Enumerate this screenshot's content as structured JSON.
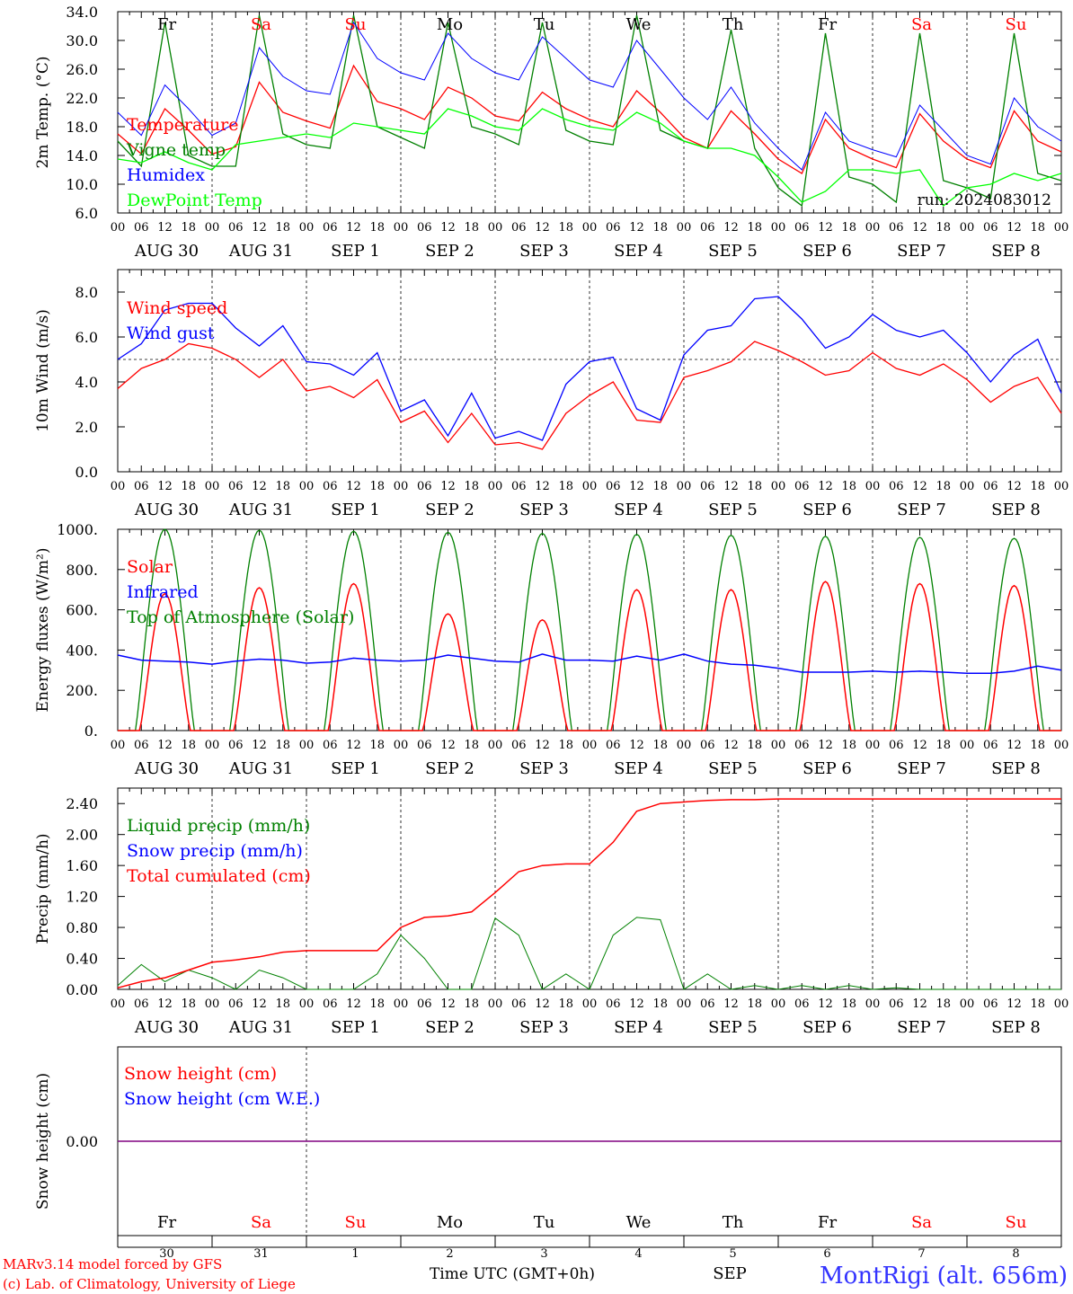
{
  "chart_data": [
    {
      "type": "line",
      "ylabel": "2m Temp. (°C)",
      "ylim": [
        6,
        34
      ],
      "yticks": [
        "6.0",
        "10.0",
        "14.0",
        "18.0",
        "22.0",
        "26.0",
        "30.0",
        "34.0"
      ],
      "yvals": [
        6,
        10,
        14,
        18,
        22,
        26,
        30,
        34
      ],
      "run_label": "run: 2024083012",
      "series": [
        {
          "name": "Temperature",
          "color": "#ff0000",
          "values": [
            17.0,
            14.2,
            20.5,
            17.5,
            14.2,
            15.2,
            24.2,
            20.0,
            18.8,
            17.8,
            26.5,
            21.5,
            20.5,
            19.0,
            23.5,
            22.0,
            19.5,
            18.8,
            22.8,
            20.5,
            19.0,
            18.0,
            23.0,
            20.0,
            16.5,
            15.0,
            20.2,
            17.0,
            13.5,
            11.5,
            19.0,
            15.0,
            13.5,
            12.3,
            19.8,
            16.0,
            13.5,
            12.3,
            20.2,
            16.0,
            14.5
          ]
        },
        {
          "name": "Vigne temp",
          "color": "#008000",
          "values": [
            16.0,
            12.5,
            32.5,
            14.0,
            12.5,
            12.5,
            33.5,
            17.0,
            15.5,
            15.0,
            33.5,
            18.0,
            16.5,
            15.0,
            32.5,
            18.0,
            17.0,
            15.5,
            32.5,
            17.5,
            16.0,
            15.5,
            33.5,
            17.5,
            16.0,
            15.0,
            31.5,
            15.0,
            9.5,
            7.0,
            31.0,
            11.0,
            10.0,
            7.5,
            31.0,
            10.5,
            9.5,
            8.0,
            31.0,
            11.5,
            10.5
          ]
        },
        {
          "name": "Humidex",
          "color": "#0000ff",
          "values": [
            20.0,
            16.8,
            23.8,
            20.5,
            16.8,
            18.5,
            29.0,
            25.0,
            23.0,
            22.5,
            32.5,
            27.5,
            25.5,
            24.5,
            31.0,
            27.5,
            25.5,
            24.5,
            30.5,
            27.5,
            24.5,
            23.5,
            30.0,
            26.0,
            22.0,
            19.0,
            23.5,
            18.5,
            15.0,
            12.0,
            20.0,
            16.0,
            14.8,
            13.8,
            21.0,
            17.5,
            14.0,
            12.8,
            22.0,
            18.0,
            16.0
          ]
        },
        {
          "name": "DewPoint Temp",
          "color": "#00ff00",
          "values": [
            13.5,
            13.0,
            14.5,
            13.0,
            12.0,
            15.5,
            16.0,
            16.5,
            17.0,
            16.5,
            18.5,
            18.0,
            17.5,
            17.0,
            20.5,
            19.5,
            18.0,
            17.5,
            20.5,
            19.0,
            18.0,
            17.5,
            20.0,
            18.5,
            16.0,
            15.0,
            15.0,
            14.0,
            11.0,
            7.5,
            9.0,
            12.0,
            12.0,
            11.5,
            12.0,
            7.0,
            9.5,
            10.0,
            11.5,
            10.5,
            11.5
          ]
        }
      ]
    },
    {
      "type": "line",
      "ylabel": "10m Wind (m/s)",
      "ylim": [
        0,
        9
      ],
      "yticks": [
        "0.0",
        "2.0",
        "4.0",
        "6.0",
        "8.0"
      ],
      "yvals": [
        0,
        2,
        4,
        6,
        8
      ],
      "ref_line": 5,
      "series": [
        {
          "name": "Wind speed",
          "color": "#ff0000",
          "values": [
            3.7,
            4.6,
            5.0,
            5.7,
            5.5,
            5.0,
            4.2,
            5.0,
            3.6,
            3.8,
            3.3,
            4.1,
            2.2,
            2.7,
            1.3,
            2.6,
            1.2,
            1.3,
            1.0,
            2.6,
            3.4,
            4.0,
            2.3,
            2.2,
            4.2,
            4.5,
            4.9,
            5.8,
            5.4,
            4.9,
            4.3,
            4.5,
            5.3,
            4.6,
            4.3,
            4.8,
            4.1,
            3.1,
            3.8,
            4.2,
            2.6
          ]
        },
        {
          "name": "Wind gust",
          "color": "#0000ff",
          "values": [
            5.0,
            5.7,
            7.2,
            7.5,
            7.5,
            6.4,
            5.6,
            6.5,
            4.9,
            4.8,
            4.3,
            5.3,
            2.7,
            3.2,
            1.6,
            3.5,
            1.5,
            1.8,
            1.4,
            3.9,
            4.9,
            5.1,
            2.8,
            2.3,
            5.2,
            6.3,
            6.5,
            7.7,
            7.8,
            6.8,
            5.5,
            6.0,
            7.0,
            6.3,
            6.0,
            6.3,
            5.3,
            4.0,
            5.2,
            5.9,
            3.5
          ]
        }
      ]
    },
    {
      "type": "line",
      "ylabel": "Energy fluxes (W/m²)",
      "ylim": [
        0,
        1000
      ],
      "yticks": [
        "0.",
        "200.",
        "400.",
        "600.",
        "800.",
        "1000."
      ],
      "yvals": [
        0,
        200,
        400,
        600,
        800,
        1000
      ],
      "series": [
        {
          "name": "Solar",
          "color": "#ff0000",
          "peaks": [
            680,
            710,
            730,
            580,
            550,
            700,
            700,
            740,
            730,
            720
          ]
        },
        {
          "name": "Infrared",
          "color": "#0000ff",
          "values": [
            375,
            350,
            345,
            340,
            330,
            345,
            355,
            350,
            335,
            340,
            360,
            350,
            345,
            350,
            375,
            360,
            345,
            340,
            380,
            350,
            350,
            345,
            370,
            350,
            380,
            345,
            330,
            325,
            310,
            290,
            290,
            290,
            295,
            290,
            295,
            290,
            285,
            285,
            295,
            320,
            300
          ]
        },
        {
          "name": "Top of Atmosphere (Solar)",
          "color": "#008000",
          "peaks": [
            1000,
            995,
            990,
            985,
            980,
            975,
            970,
            965,
            960,
            955
          ]
        }
      ]
    },
    {
      "type": "line",
      "ylabel": "Precip (mm/h)",
      "ylim": [
        0,
        2.6
      ],
      "yticks": [
        "0.00",
        "0.40",
        "0.80",
        "1.20",
        "1.60",
        "2.00",
        "2.40"
      ],
      "yvals": [
        0,
        0.4,
        0.8,
        1.2,
        1.6,
        2.0,
        2.4
      ],
      "series": [
        {
          "name": "Liquid precip (mm/h)",
          "color": "#008000",
          "values": [
            0.05,
            0.32,
            0.1,
            0.25,
            0.15,
            0.0,
            0.25,
            0.15,
            0.0,
            0.0,
            0.0,
            0.2,
            0.7,
            0.4,
            0.0,
            0.0,
            0.92,
            0.7,
            0.0,
            0.2,
            0.0,
            0.7,
            0.93,
            0.9,
            0.0,
            0.2,
            0.0,
            0.05,
            0.0,
            0.05,
            0.0,
            0.05,
            0.0,
            0.02,
            0.0,
            0.0,
            0.0,
            0.0,
            0.0,
            0.0,
            0.0
          ]
        },
        {
          "name": "Snow precip (mm/h)",
          "color": "#0000ff",
          "values": []
        },
        {
          "name": "Total cumulated (cm)",
          "color": "#ff0000",
          "values": [
            0.02,
            0.1,
            0.15,
            0.25,
            0.35,
            0.38,
            0.42,
            0.48,
            0.5,
            0.5,
            0.5,
            0.5,
            0.8,
            0.93,
            0.95,
            1.0,
            1.25,
            1.52,
            1.6,
            1.62,
            1.62,
            1.9,
            2.3,
            2.4,
            2.42,
            2.44,
            2.45,
            2.45,
            2.46,
            2.46,
            2.46,
            2.46,
            2.46,
            2.46,
            2.46,
            2.46,
            2.46,
            2.46,
            2.46,
            2.46,
            2.46
          ]
        }
      ]
    },
    {
      "type": "line",
      "ylabel": "Snow height (cm)",
      "yticks": [
        "0.00"
      ],
      "series": [
        {
          "name": "Snow height (cm)",
          "color": "#ff0000",
          "values": [
            0,
            0
          ]
        },
        {
          "name": "Snow height (cm W.E.)",
          "color": "#0000ff",
          "values": [
            0,
            0
          ]
        }
      ]
    }
  ],
  "x_axis": {
    "hour_ticks": [
      "00",
      "06",
      "12",
      "18"
    ],
    "dates": [
      "AUG 30",
      "AUG 31",
      "SEP  1",
      "SEP  2",
      "SEP  3",
      "SEP  4",
      "SEP  5",
      "SEP  6",
      "SEP  7",
      "SEP  8"
    ],
    "days": [
      {
        "label": "Fr",
        "color": "#000000"
      },
      {
        "label": "Sa",
        "color": "#ff0000"
      },
      {
        "label": "Su",
        "color": "#ff0000"
      },
      {
        "label": "Mo",
        "color": "#000000"
      },
      {
        "label": "Tu",
        "color": "#000000"
      },
      {
        "label": "We",
        "color": "#000000"
      },
      {
        "label": "Th",
        "color": "#000000"
      },
      {
        "label": "Fr",
        "color": "#000000"
      },
      {
        "label": "Sa",
        "color": "#ff0000"
      },
      {
        "label": "Su",
        "color": "#ff0000"
      }
    ],
    "day_numbers": [
      "30",
      "31",
      "1",
      "2",
      "3",
      "4",
      "5",
      "6",
      "7",
      "8"
    ],
    "month": "SEP",
    "time_label": "Time UTC (GMT+0h)"
  },
  "footer": {
    "credit_line1": "MARv3.14 model forced by GFS",
    "credit_line2": "(c) Lab. of Climatology, University of Liege",
    "station": "MontRigi (alt. 656m)"
  },
  "colors": {
    "red": "#ff0000",
    "green": "#008000",
    "blue": "#0000ff",
    "lime": "#00ff00",
    "purple": "#800080"
  }
}
